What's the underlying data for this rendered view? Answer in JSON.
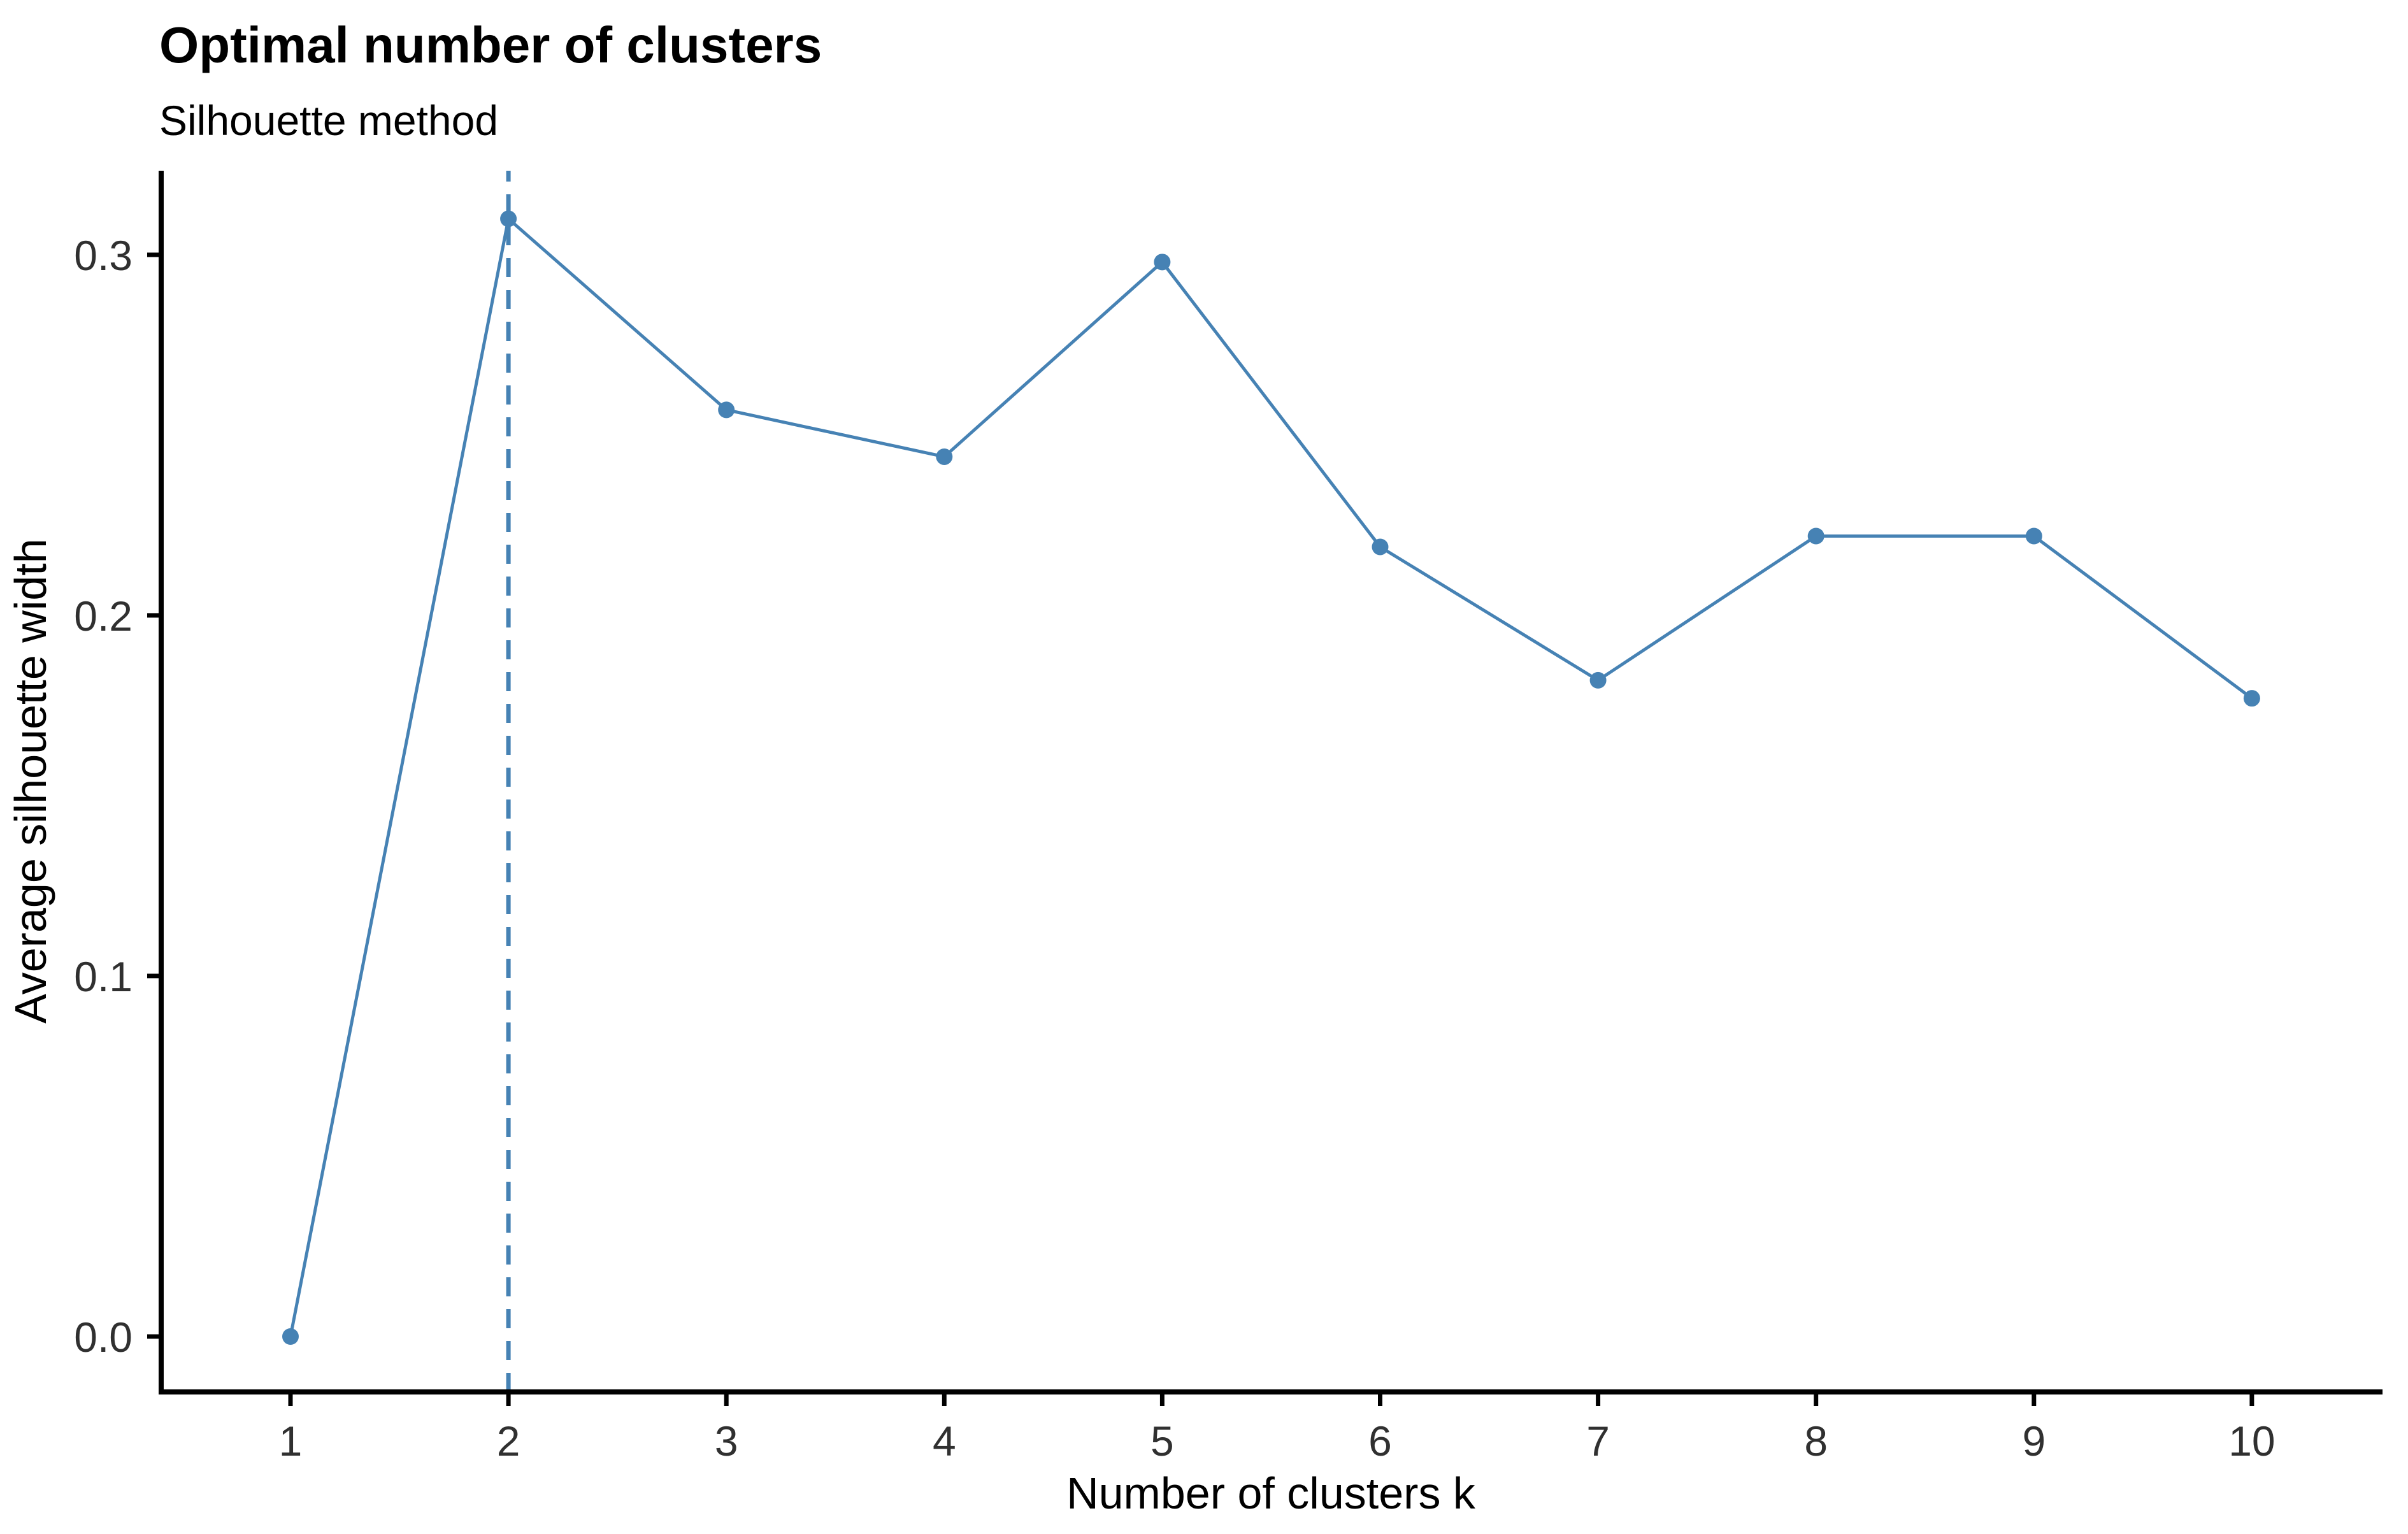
{
  "chart_data": {
    "type": "line",
    "title": "Optimal number of clusters",
    "subtitle": "Silhouette method",
    "xlabel": "Number of clusters k",
    "ylabel": "Average silhouette width",
    "x": [
      1,
      2,
      3,
      4,
      5,
      6,
      7,
      8,
      9,
      10
    ],
    "values": [
      0.0,
      0.31,
      0.257,
      0.244,
      0.298,
      0.219,
      0.182,
      0.222,
      0.222,
      0.177
    ],
    "x_tick_labels": [
      "1",
      "2",
      "3",
      "4",
      "5",
      "6",
      "7",
      "8",
      "9",
      "10"
    ],
    "y_tick_values": [
      0.0,
      0.1,
      0.2,
      0.3
    ],
    "y_tick_labels": [
      "0.0",
      "0.1",
      "0.2",
      "0.3"
    ],
    "ylim": [
      -0.015,
      0.33
    ],
    "optimal_k": 2,
    "vline_x": 2,
    "vline_style": "dashed",
    "grid": false,
    "legend": "none",
    "line_color": "#4682B4",
    "point_color": "#4682B4",
    "vline_color": "#4682B4"
  },
  "colors": {
    "background": "#ffffff",
    "axis_line": "#000000",
    "title_text": "#000000",
    "body_text": "#1a1a1a",
    "tick_text": "#303030"
  }
}
